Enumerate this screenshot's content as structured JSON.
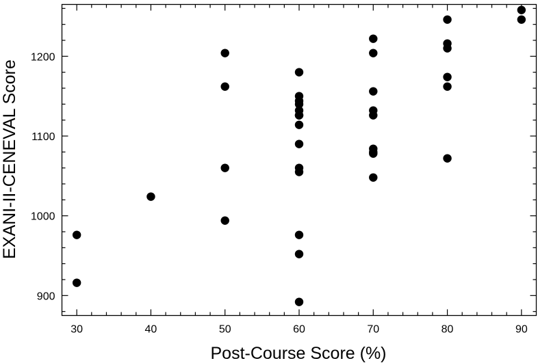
{
  "chart_data": {
    "type": "scatter",
    "title": "",
    "xlabel": "Post-Course Score (%)",
    "ylabel": "EXANI-II-CENEVAL Score",
    "xlim": [
      28,
      92
    ],
    "ylim": [
      875,
      1265
    ],
    "xticks": [
      30,
      40,
      50,
      60,
      70,
      80,
      90
    ],
    "yticks": [
      900,
      1000,
      1100,
      1200
    ],
    "grid": false,
    "legend": "none",
    "marker_color": "#000000",
    "series": [
      {
        "x": [
          30,
          30,
          40,
          50,
          50,
          50,
          50,
          60,
          60,
          60,
          60,
          60,
          60,
          60,
          60,
          60,
          60,
          60,
          60,
          60,
          60,
          70,
          70,
          70,
          70,
          70,
          70,
          70,
          70,
          70,
          80,
          80,
          80,
          80,
          80,
          80,
          90,
          90
        ],
        "y": [
          976,
          916,
          1024,
          1204,
          1162,
          1060,
          994,
          1180,
          1150,
          1144,
          1132,
          1126,
          1114,
          1090,
          1060,
          1055,
          976,
          952,
          892,
          1126,
          1140,
          1222,
          1204,
          1156,
          1132,
          1126,
          1084,
          1078,
          1048,
          1080,
          1246,
          1216,
          1210,
          1174,
          1162,
          1072,
          1258,
          1246
        ]
      }
    ]
  }
}
